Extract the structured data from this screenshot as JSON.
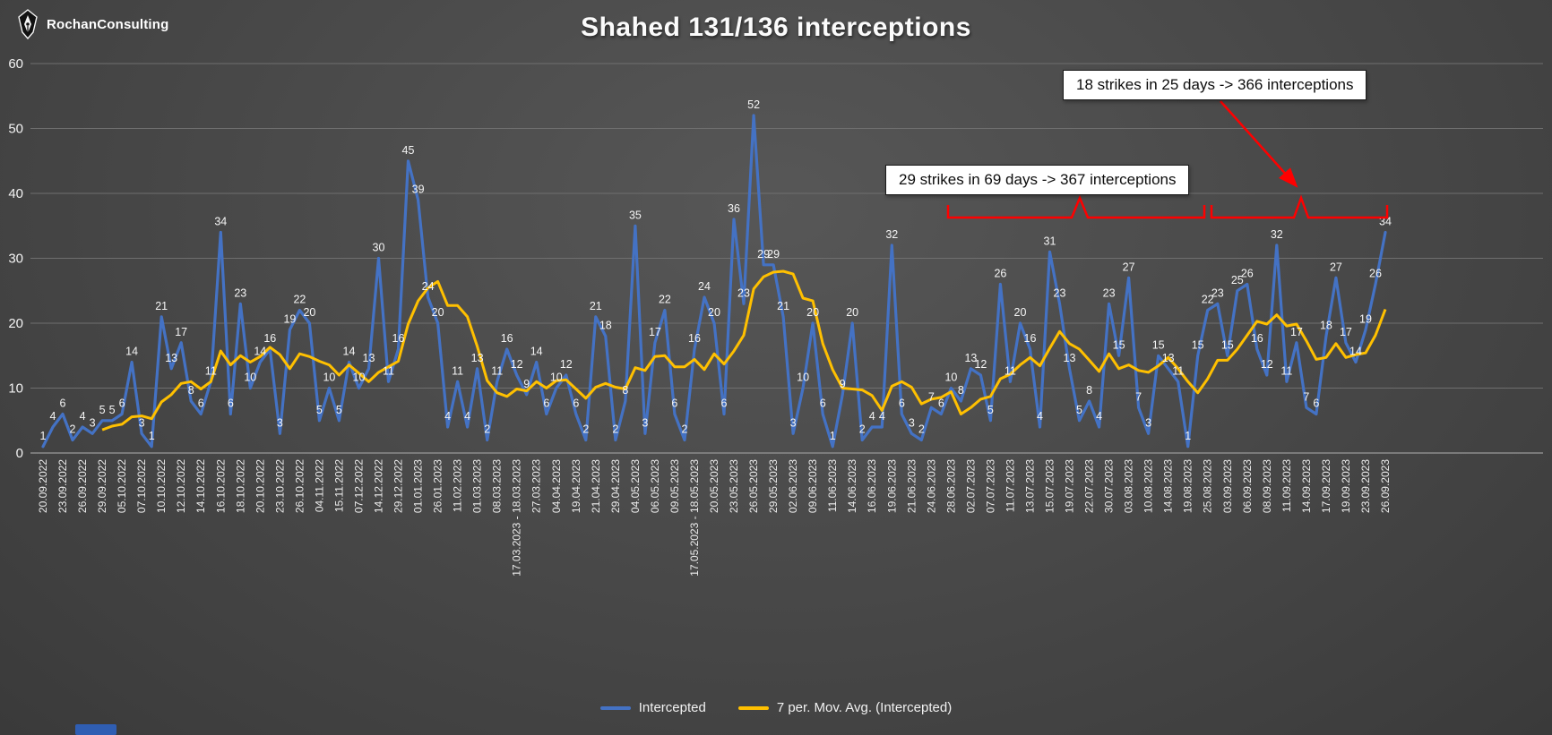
{
  "header": {
    "logo_text": "RochanConsulting",
    "title": "Shahed 131/136 interceptions"
  },
  "annotations": [
    {
      "text": "18 strikes in 25 days -> 366 interceptions"
    },
    {
      "text": "29 strikes in 69 days -> 367 interceptions"
    }
  ],
  "legend": [
    {
      "label": "Intercepted",
      "color": "#4472C4"
    },
    {
      "label": "7 per. Mov. Avg. (Intercepted)",
      "color": "#FFC000"
    }
  ],
  "colors": {
    "annotation_red": "#ff0000",
    "grid": "#6f6f6f",
    "axis_text": "#ededed",
    "data_label": "#f5f5f5"
  },
  "chart_data": {
    "type": "line",
    "title": "Shahed 131/136 interceptions",
    "xlabel": "",
    "ylabel": "",
    "ylim": [
      0,
      60
    ],
    "yticks": [
      0,
      10,
      20,
      30,
      40,
      50,
      60
    ],
    "grid": true,
    "legend_position": "bottom",
    "x_tick_rotation": 90,
    "x_tick_every": 2,
    "x_tick_labels": [
      "20.09.2022",
      "23.09.2022",
      "26.09.2022",
      "29.09.2022",
      "05.10.2022",
      "07.10.2022",
      "10.10.2022",
      "12.10.2022",
      "14.10.2022",
      "16.10.2022",
      "18.10.2022",
      "20.10.2022",
      "23.10.2022",
      "26.10.2022",
      "04.11.2022",
      "15.11.2022",
      "07.12.2022",
      "14.12.2022",
      "29.12.2022",
      "01.01.2023",
      "26.01.2023",
      "11.02.2023",
      "01.03.2023",
      "08.03.2023",
      "17.03.2023 - 18.03.2023",
      "27.03.2023",
      "04.04.2023",
      "19.04.2023",
      "21.04.2023",
      "29.04.2023",
      "04.05.2023",
      "06.05.2023",
      "09.05.2023",
      "17.05.2023 - 18.05.2023",
      "20.05.2023",
      "23.05.2023",
      "26.05.2023",
      "29.05.2023",
      "02.06.2023",
      "09.06.2023",
      "11.06.2023",
      "14.06.2023",
      "16.06.2023",
      "19.06.2023",
      "21.06.2023",
      "24.06.2023",
      "28.06.2023",
      "02.07.2023",
      "07.07.2023",
      "11.07.2023",
      "13.07.2023",
      "15.07.2023",
      "19.07.2023",
      "22.07.2023",
      "30.07.2023",
      "03.08.2023",
      "10.08.2023",
      "14.08.2023",
      "19.08.2023",
      "25.08.2023",
      "03.09.2023",
      "06.09.2023",
      "08.09.2023",
      "11.09.2023",
      "14.09.2023",
      "17.09.2023",
      "19.09.2023",
      "23.09.2023",
      "26.09.2023"
    ],
    "series": [
      {
        "name": "Intercepted",
        "color": "#4472C4",
        "values": [
          1,
          4,
          6,
          2,
          4,
          3,
          5,
          5,
          6,
          14,
          3,
          1,
          21,
          13,
          17,
          8,
          6,
          11,
          34,
          6,
          23,
          10,
          14,
          16,
          3,
          19,
          22,
          20,
          5,
          10,
          5,
          14,
          10,
          13,
          30,
          11,
          16,
          45,
          39,
          24,
          20,
          4,
          11,
          4,
          13,
          2,
          11,
          16,
          12,
          9,
          14,
          6,
          10,
          12,
          6,
          2,
          21,
          18,
          2,
          8,
          35,
          3,
          17,
          22,
          6,
          2,
          16,
          24,
          20,
          6,
          36,
          23,
          52,
          29,
          29,
          21,
          3,
          10,
          20,
          6,
          1,
          9,
          20,
          2,
          4,
          4,
          32,
          6,
          3,
          2,
          7,
          6,
          10,
          8,
          13,
          12,
          5,
          26,
          11,
          20,
          16,
          4,
          31,
          23,
          13,
          5,
          8,
          4,
          23,
          15,
          27,
          7,
          3,
          15,
          13,
          11,
          1,
          15,
          22,
          23,
          15,
          25,
          26,
          16,
          12,
          32,
          11,
          17,
          7,
          6,
          18,
          27,
          17,
          14,
          19,
          26,
          34
        ]
      },
      {
        "name": "7 per. Mov. Avg. (Intercepted)",
        "color": "#FFC000",
        "window": 7,
        "derived_from": "Intercepted"
      }
    ]
  }
}
